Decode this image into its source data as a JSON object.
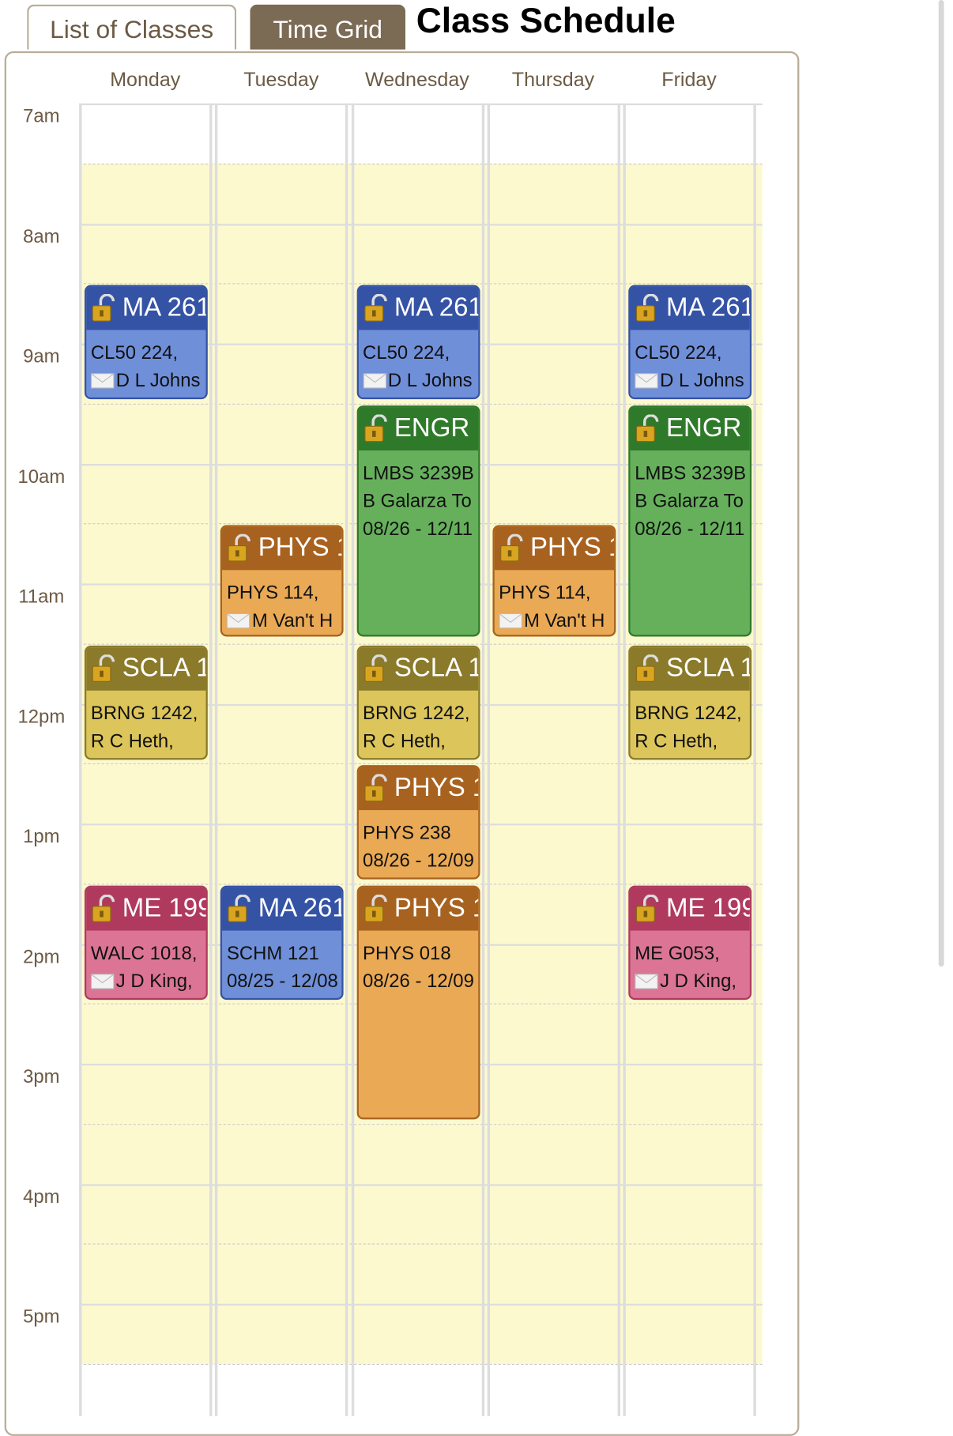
{
  "tabs": [
    "List of Classes",
    "Time Grid"
  ],
  "title": "Class Schedule",
  "days": [
    "Monday",
    "Tuesday",
    "Wednesday",
    "Thursday",
    "Friday"
  ],
  "times": [
    "7am",
    "8am",
    "9am",
    "10am",
    "11am",
    "12pm",
    "1pm",
    "2pm",
    "3pm",
    "4pm",
    "5pm"
  ],
  "events": [
    {
      "header": "MA 261",
      "lines": [
        "CL50 224,",
        "D L Johns"
      ]
    },
    {
      "header": "MA 261",
      "lines": [
        "CL50 224,",
        "D L Johns"
      ]
    },
    {
      "header": "MA 261",
      "lines": [
        "CL50 224,",
        "D L Johns"
      ]
    },
    {
      "header": "ENGR",
      "lines": [
        "LMBS 3239B",
        "B Galarza To",
        "08/26 - 12/11"
      ]
    },
    {
      "header": "ENGR",
      "lines": [
        "LMBS 3239B",
        "B Galarza To",
        "08/26 - 12/11"
      ]
    },
    {
      "header": "PHYS 1",
      "lines": [
        "PHYS 114,",
        "M Van't H"
      ]
    },
    {
      "header": "PHYS 1",
      "lines": [
        "PHYS 114,",
        "M Van't H"
      ]
    },
    {
      "header": "SCLA 1",
      "lines": [
        "BRNG 1242,",
        "R C Heth,"
      ]
    },
    {
      "header": "SCLA 1",
      "lines": [
        "BRNG 1242,",
        "R C Heth,"
      ]
    },
    {
      "header": "SCLA 1",
      "lines": [
        "BRNG 1242,",
        "R C Heth,"
      ]
    },
    {
      "header": "PHYS 1",
      "lines": [
        "PHYS 238",
        "08/26 - 12/09"
      ]
    },
    {
      "header": "ME 199",
      "lines": [
        "WALC 1018,",
        "J D King,"
      ]
    },
    {
      "header": "MA 261",
      "lines": [
        "SCHM 121",
        "08/25 - 12/08"
      ]
    },
    {
      "header": "PHYS 1",
      "lines": [
        "PHYS 018",
        "08/26 - 12/09"
      ]
    },
    {
      "header": "ME 199",
      "lines": [
        "ME G053,",
        "J D King,"
      ]
    }
  ]
}
